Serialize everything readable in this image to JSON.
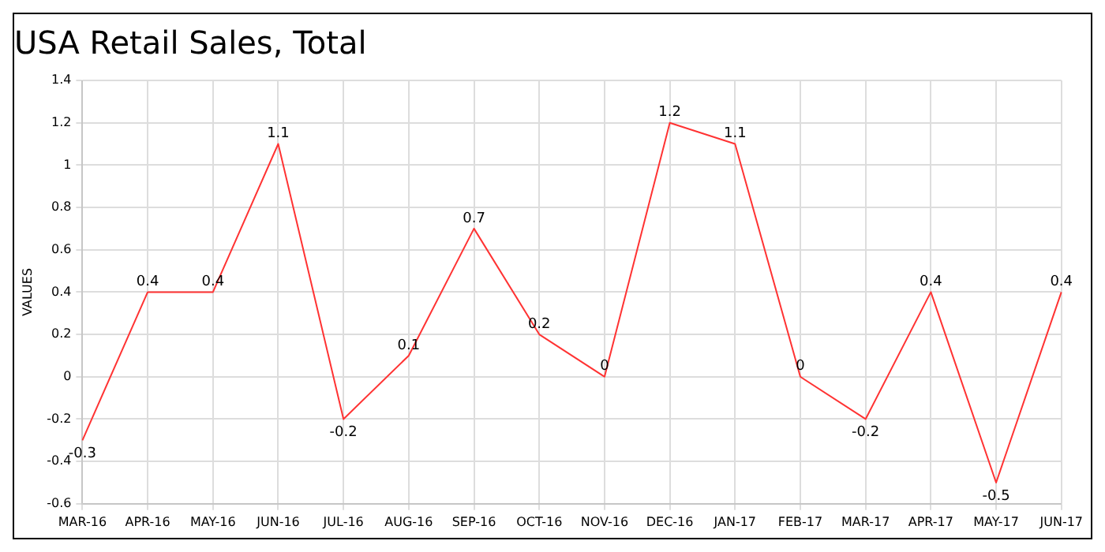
{
  "chart_data": {
    "type": "line",
    "title": "USA Retail Sales, Total",
    "ylabel": "VALUES",
    "categories": [
      "MAR-16",
      "APR-16",
      "MAY-16",
      "JUN-16",
      "JUL-16",
      "AUG-16",
      "SEP-16",
      "OCT-16",
      "NOV-16",
      "DEC-16",
      "JAN-17",
      "FEB-17",
      "MAR-17",
      "APR-17",
      "MAY-17",
      "JUN-17"
    ],
    "series": [
      {
        "color": "#ff3333",
        "values": [
          -0.3,
          0.4,
          0.4,
          1.1,
          -0.2,
          0.1,
          0.7,
          0.2,
          0,
          1.2,
          1.1,
          0,
          -0.2,
          0.4,
          -0.5,
          0.4
        ]
      }
    ],
    "ylim": [
      -0.6,
      1.4
    ],
    "yticks": [
      -0.6,
      -0.4,
      -0.2,
      0,
      0.2,
      0.4,
      0.6,
      0.8,
      1,
      1.2,
      1.4
    ],
    "grid": true,
    "marker": "none",
    "line_style": "solid",
    "data_labels": true
  }
}
